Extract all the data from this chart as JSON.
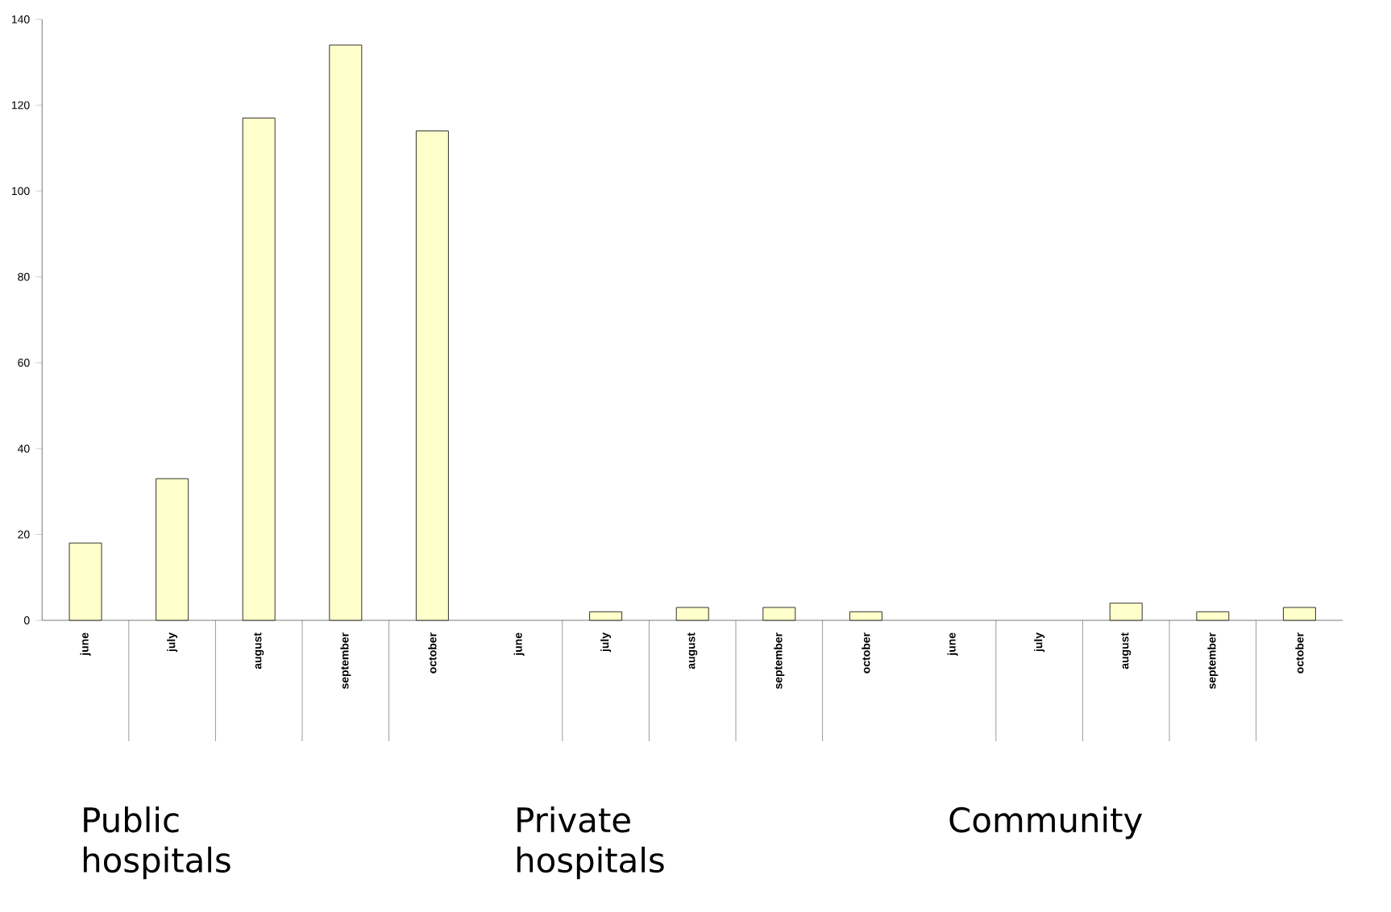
{
  "chart_data": {
    "type": "bar",
    "categories": [
      "june",
      "july",
      "august",
      "september",
      "october",
      "june",
      "july",
      "august",
      "september",
      "october",
      "june",
      "july",
      "august",
      "september",
      "october"
    ],
    "values": [
      18,
      33,
      117,
      134,
      114,
      0,
      2,
      3,
      3,
      2,
      0,
      0,
      4,
      2,
      3
    ],
    "color": "#ffffcc",
    "ylim": [
      0,
      140
    ],
    "yticks": [
      0,
      20,
      40,
      60,
      80,
      100,
      120,
      140
    ],
    "grid": false,
    "annotations": [
      "Public hospitals",
      "Private hospitals",
      "Community"
    ]
  }
}
